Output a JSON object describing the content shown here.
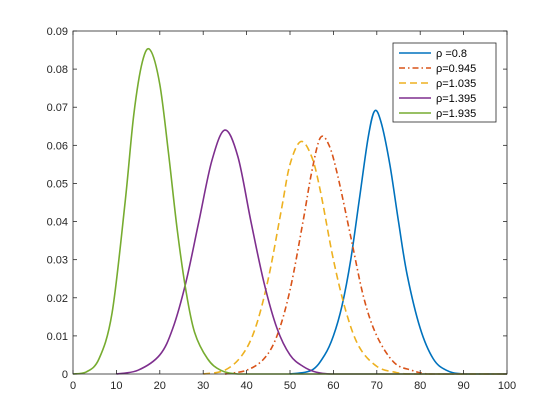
{
  "chart_data": {
    "type": "line",
    "title": "",
    "xlabel": "",
    "ylabel": "",
    "xlim": [
      0,
      100
    ],
    "ylim": [
      0,
      0.09
    ],
    "xticks": [
      "0",
      "10",
      "20",
      "30",
      "40",
      "50",
      "60",
      "70",
      "80",
      "90",
      "100"
    ],
    "yticks": [
      "0",
      "0.01",
      "0.02",
      "0.03",
      "0.04",
      "0.05",
      "0.06",
      "0.07",
      "0.08",
      "0.09"
    ],
    "grid": false,
    "legend_position": "top-right",
    "series": [
      {
        "name": "ρ =0.8",
        "color": "#0072BD",
        "dash": "solid",
        "x": [
          50,
          55,
          58,
          60,
          62,
          64,
          66,
          68,
          69.5,
          71,
          73,
          75,
          77,
          80,
          83,
          86,
          90,
          100
        ],
        "y": [
          0,
          0.001,
          0.005,
          0.01,
          0.018,
          0.03,
          0.046,
          0.062,
          0.069,
          0.066,
          0.055,
          0.04,
          0.026,
          0.012,
          0.004,
          0.001,
          0,
          0
        ]
      },
      {
        "name": "ρ=0.945",
        "color": "#D95319",
        "dash": "dash-dot",
        "x": [
          35,
          40,
          44,
          47,
          50,
          53,
          55,
          57,
          59,
          61,
          64,
          67,
          70,
          74,
          78,
          82,
          90,
          100
        ],
        "y": [
          0,
          0.001,
          0.004,
          0.01,
          0.022,
          0.04,
          0.053,
          0.062,
          0.06,
          0.052,
          0.036,
          0.02,
          0.01,
          0.003,
          0.001,
          0,
          0,
          0
        ]
      },
      {
        "name": "ρ=1.035",
        "color": "#EDB120",
        "dash": "dashed",
        "x": [
          30,
          35,
          39,
          42,
          45,
          48,
          50,
          52.5,
          55,
          57,
          60,
          63,
          66,
          70,
          74,
          78,
          90,
          100
        ],
        "y": [
          0,
          0.001,
          0.005,
          0.012,
          0.025,
          0.043,
          0.055,
          0.061,
          0.057,
          0.048,
          0.03,
          0.016,
          0.007,
          0.002,
          0.0005,
          0,
          0,
          0
        ]
      },
      {
        "name": "ρ=1.395",
        "color": "#7E2F8E",
        "dash": "solid",
        "x": [
          10,
          15,
          20,
          23,
          26,
          29,
          32,
          35,
          38,
          41,
          44,
          47,
          50,
          53,
          56,
          60,
          70,
          100
        ],
        "y": [
          0,
          0.001,
          0.005,
          0.012,
          0.024,
          0.04,
          0.056,
          0.064,
          0.057,
          0.04,
          0.024,
          0.012,
          0.005,
          0.002,
          0.0005,
          0,
          0,
          0
        ]
      },
      {
        "name": "ρ=1.935",
        "color": "#77AC30",
        "dash": "solid",
        "x": [
          0,
          3,
          6,
          9,
          12,
          14,
          16,
          17.8,
          20,
          22,
          24,
          26,
          28,
          31,
          34,
          38,
          45,
          100
        ],
        "y": [
          0,
          0.0005,
          0.004,
          0.016,
          0.045,
          0.068,
          0.082,
          0.085,
          0.076,
          0.058,
          0.038,
          0.022,
          0.011,
          0.004,
          0.001,
          0,
          0,
          0
        ]
      }
    ]
  }
}
